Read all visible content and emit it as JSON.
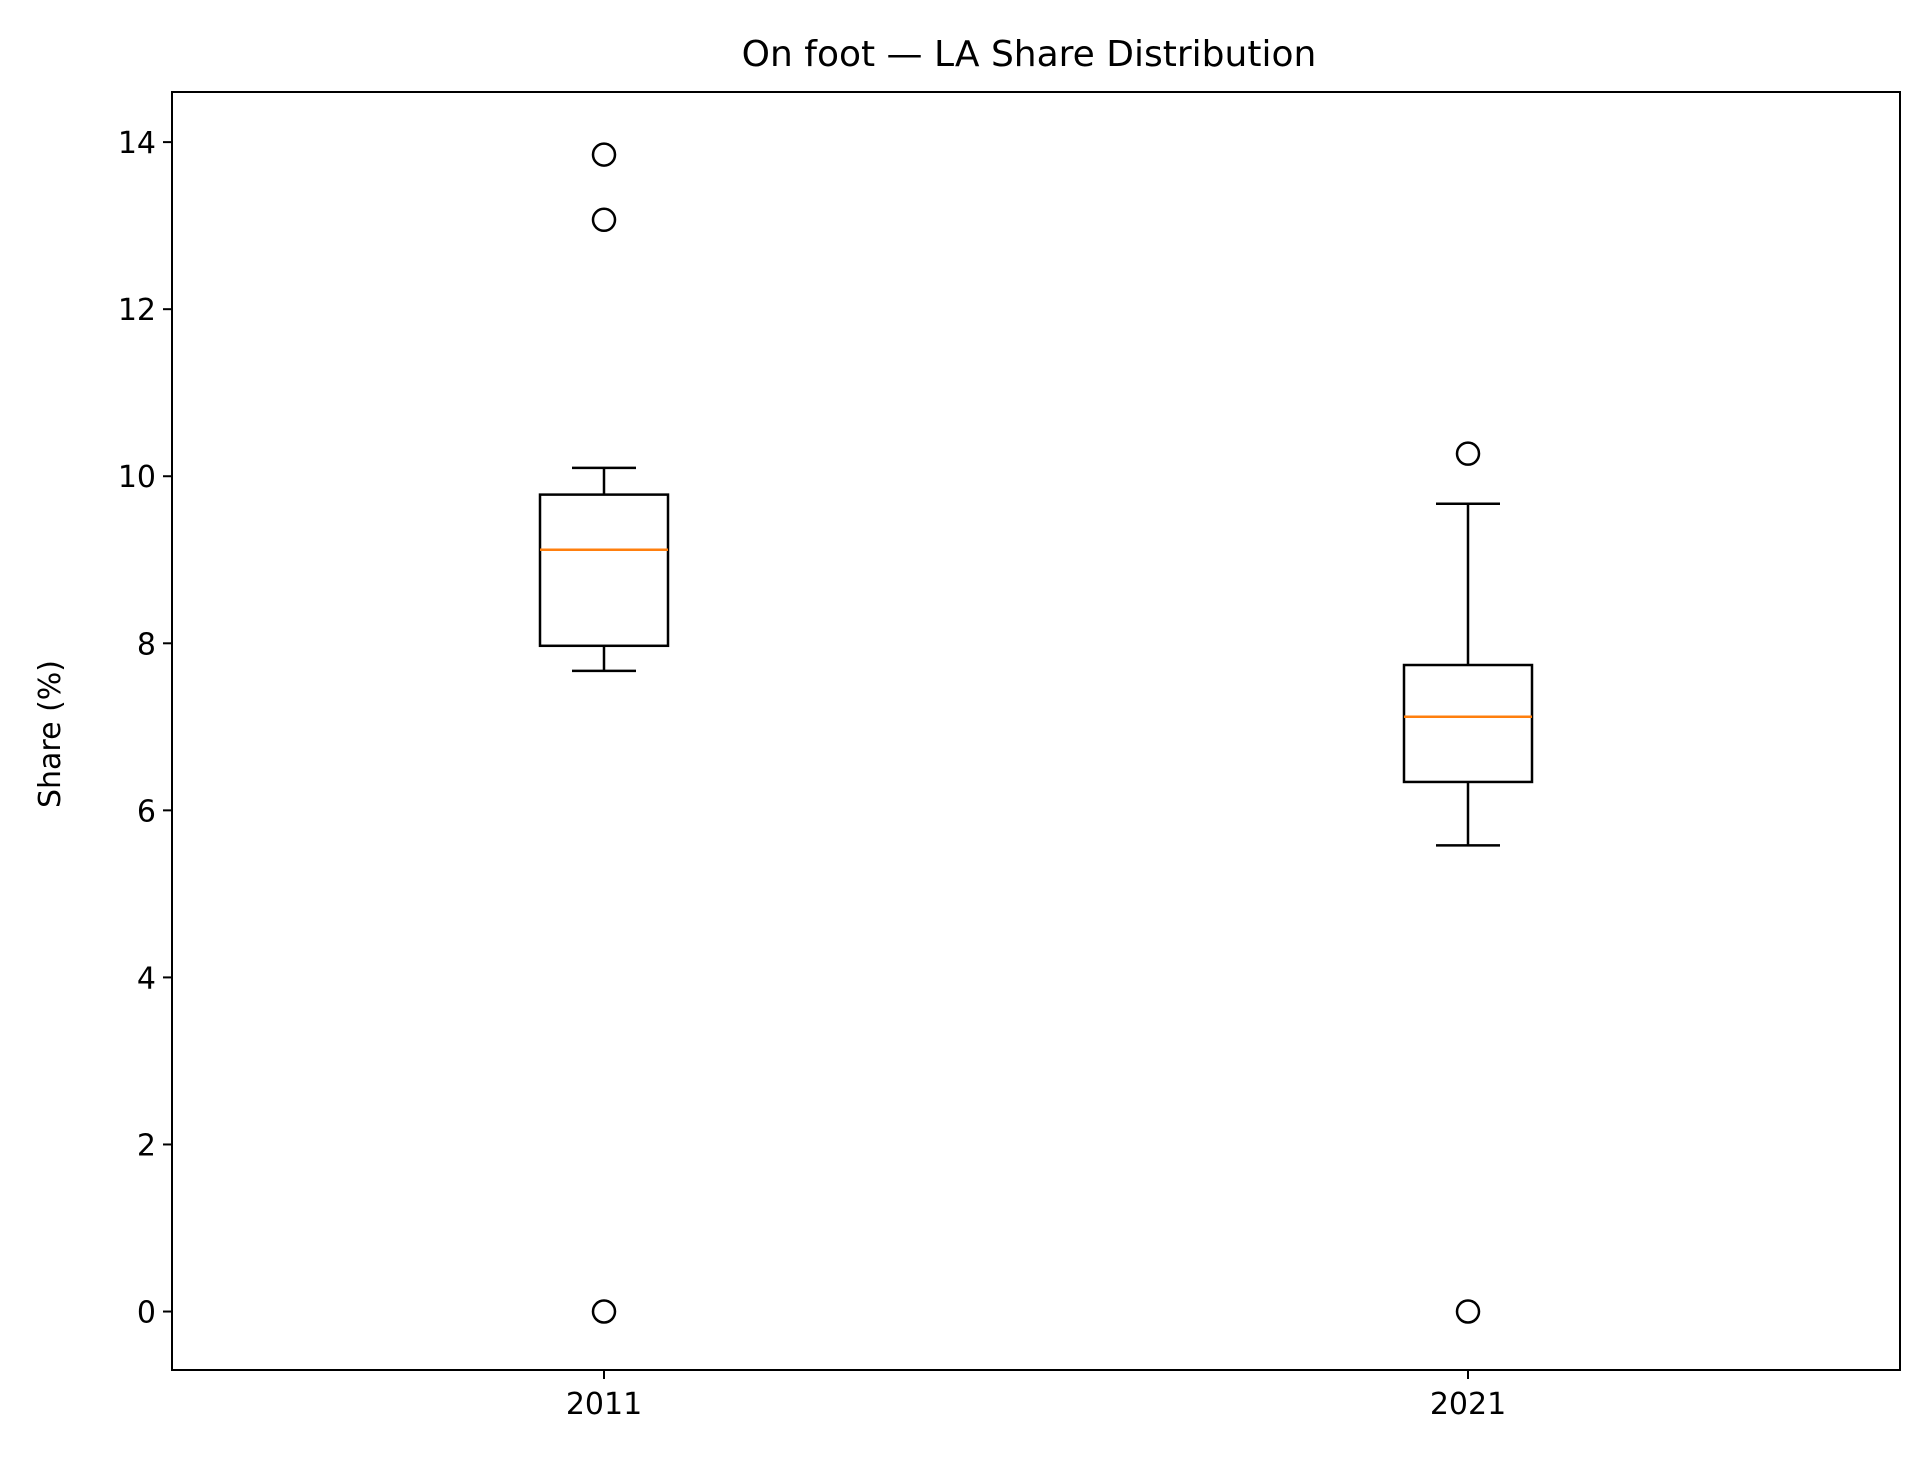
{
  "chart_data": {
    "type": "box",
    "title": "On foot — LA Share Distribution",
    "xlabel": "",
    "ylabel": "Share (%)",
    "categories": [
      "2011",
      "2021"
    ],
    "ylim": [
      -0.7,
      14.6
    ],
    "yticks": [
      0,
      2,
      4,
      6,
      8,
      10,
      12,
      14
    ],
    "grid": false,
    "boxes": [
      {
        "category": "2011",
        "whisker_low": 7.67,
        "q1": 7.97,
        "median": 9.12,
        "q3": 9.78,
        "whisker_high": 10.1,
        "outliers": [
          13.85,
          13.07,
          0.0
        ]
      },
      {
        "category": "2021",
        "whisker_low": 5.58,
        "q1": 6.34,
        "median": 7.12,
        "q3": 7.74,
        "whisker_high": 9.67,
        "outliers": [
          10.27,
          0.0
        ]
      }
    ],
    "colors": {
      "box": "#000000",
      "median": "#ff7f0e",
      "outlier": "#000000"
    }
  }
}
